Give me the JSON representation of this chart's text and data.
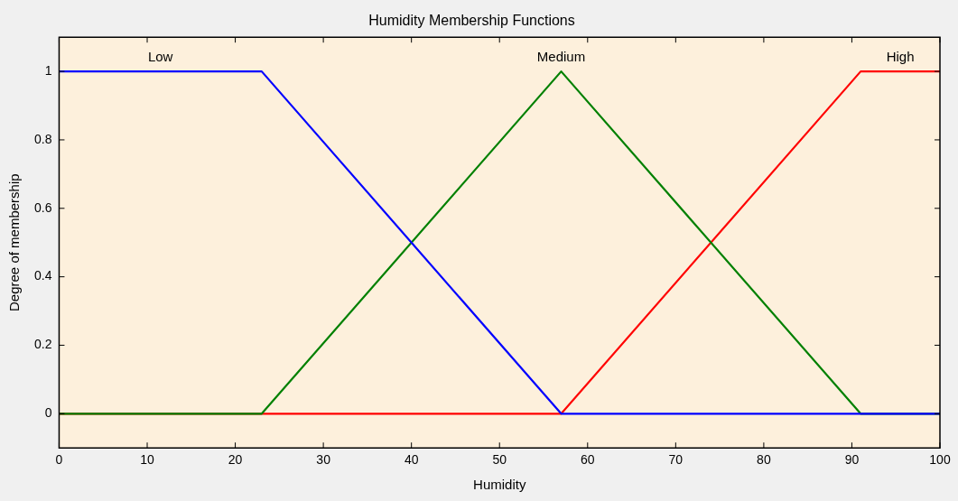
{
  "chart_data": {
    "type": "line",
    "title": "Humidity Membership Functions",
    "xlabel": "Humidity",
    "ylabel": "Degree of membership",
    "series": [
      {
        "name": "Low",
        "color": "#0000ff",
        "x": [
          0,
          23,
          57,
          100
        ],
        "values": [
          1,
          1,
          0,
          0
        ]
      },
      {
        "name": "Medium",
        "color": "#008000",
        "x": [
          0,
          23,
          57,
          91,
          100
        ],
        "values": [
          0,
          0,
          1,
          0,
          0
        ]
      },
      {
        "name": "High",
        "color": "#ff0000",
        "x": [
          0,
          57,
          91,
          100
        ],
        "values": [
          0,
          0,
          1,
          1
        ]
      }
    ],
    "xlim": [
      0,
      100
    ],
    "xticks": [
      0,
      10,
      20,
      30,
      40,
      50,
      60,
      70,
      80,
      90,
      100
    ],
    "ylim": [
      -0.1,
      1.1
    ],
    "yticks": [
      0,
      0.2,
      0.4,
      0.6,
      0.8,
      1
    ],
    "grid": false,
    "legend": false,
    "marker": "none",
    "line_style": "solid"
  }
}
